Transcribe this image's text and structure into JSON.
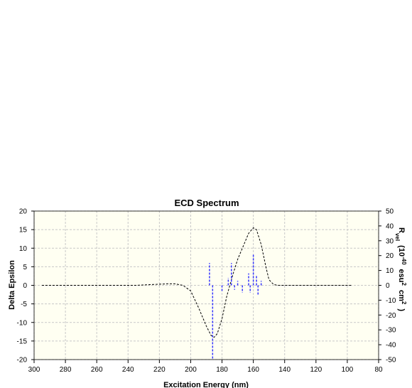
{
  "chart_data": {
    "type": "line",
    "title": "ECD Spectrum",
    "xlabel": "Excitation Energy (nm)",
    "ylabel": "Delta Epsilon",
    "y2label": [
      {
        "text": "R"
      },
      {
        "text": "vel",
        "shift": "sub"
      },
      {
        "text": "(10"
      },
      {
        "text": "-40",
        "shift": "super"
      },
      {
        "text": "esu"
      },
      {
        "text": "2",
        "shift": "super"
      },
      {
        "text": "cm"
      },
      {
        "text": "2",
        "shift": "super"
      },
      {
        "text": ")"
      }
    ],
    "xlim": [
      300,
      80
    ],
    "xticks": [
      300,
      280,
      260,
      240,
      220,
      200,
      180,
      160,
      140,
      120,
      100,
      80
    ],
    "ylim": [
      -20,
      20
    ],
    "yticks": [
      -20,
      -15,
      -10,
      -5,
      0,
      5,
      10,
      15,
      20
    ],
    "y2lim": [
      -50,
      50
    ],
    "y2ticks": [
      -50,
      -40,
      -30,
      -20,
      -10,
      0,
      10,
      20,
      30,
      40,
      50
    ],
    "grid": true,
    "background": "#fffff2",
    "series": [
      {
        "type": "line",
        "color": "#000000",
        "x": [
          295,
          260,
          235,
          225,
          215,
          210,
          205,
          200,
          195,
          190,
          187,
          185,
          183,
          180,
          177,
          173,
          170,
          167,
          163,
          160,
          158,
          155,
          152,
          150,
          147,
          144,
          120,
          97
        ],
        "values": [
          0,
          0,
          0,
          0.2,
          0.4,
          0.4,
          0,
          -1.5,
          -6,
          -11,
          -13.5,
          -14,
          -13,
          -9,
          -3,
          3,
          7,
          10,
          14,
          15.5,
          15,
          11,
          5,
          1.5,
          0.2,
          0,
          0,
          0
        ]
      },
      {
        "type": "stem",
        "axis": "y2",
        "color": "#3333ff",
        "x": [
          188,
          186,
          180,
          176,
          174,
          172,
          170,
          167,
          163,
          162,
          160,
          158,
          157,
          155
        ],
        "values": [
          15,
          -50,
          -4,
          5,
          15,
          -3,
          3,
          -5,
          8,
          -5,
          21,
          7,
          -7,
          3
        ]
      }
    ]
  }
}
